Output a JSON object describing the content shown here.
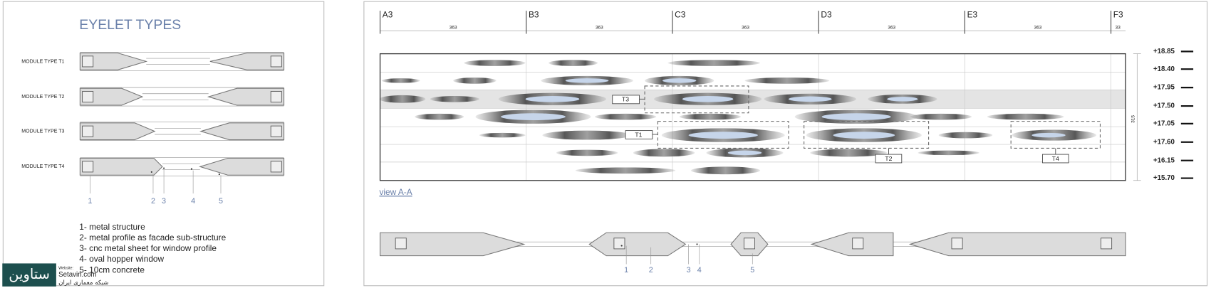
{
  "left_panel": {
    "title": "EYELET TYPES",
    "modules": [
      "MODULE TYPE  T1",
      "MODULE TYPE  T2",
      "MODULE TYPE  T3",
      "MODULE TYPE  T4"
    ],
    "callouts": [
      "1",
      "2",
      "3",
      "4",
      "5"
    ],
    "legend": [
      "1- metal structure",
      "2- metal profile as facade sub-structure",
      "3- cnc metal sheet for window profile",
      "4- oval hopper window",
      "5- 10cm concrete"
    ]
  },
  "right_panel": {
    "grid_labels": [
      "A3",
      "B3",
      "C3",
      "D3",
      "E3",
      "F3"
    ],
    "dimensions": [
      "363",
      "363",
      "363",
      "363",
      "363",
      "33"
    ],
    "elevations": [
      "+18.85",
      "+18.40",
      "+17.95",
      "+17.50",
      "+17.05",
      "+17.60",
      "+16.15",
      "+15.70"
    ],
    "height_dimension": "315",
    "tags": [
      "T3",
      "T1",
      "T2",
      "T4"
    ],
    "view_label": "view  A-A",
    "section_callouts": [
      "1",
      "2",
      "3",
      "4",
      "5"
    ]
  },
  "watermark": {
    "logo": "ستاوین",
    "website_label": "Website:",
    "website": "Setavin.com",
    "subtitle": "شبکه معماری ایران"
  }
}
